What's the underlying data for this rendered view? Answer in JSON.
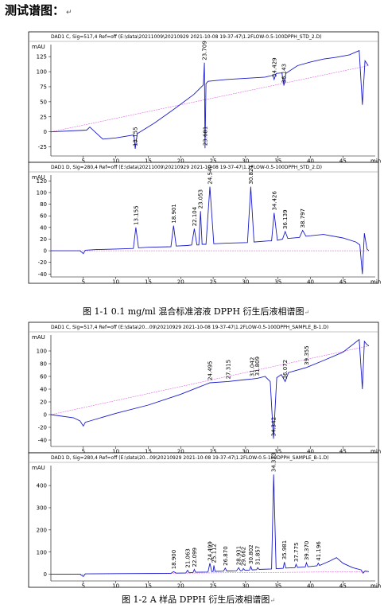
{
  "heading": "测试谱图：",
  "paragraph_mark": "↵",
  "watermark": "",
  "captions": {
    "fig1": "图 1-1 0.1 mg/ml  混合标准溶液 DPPH 衍生后液相谱图",
    "fig2": "图 1-2 A 样品 DPPH 衍生后液相谱图"
  },
  "colors": {
    "signal": "#1a1acd",
    "baseline": "#e040e0",
    "frame": "#000000"
  },
  "chart_data": [
    {
      "type": "line",
      "header": "DAD1 C, Sig=517,4 Ref=off (E:\\data\\20211009\\20210929 2021-10-08 19-37-47\\1.2FLOW-0.5-100DPPH_STD_2.D)",
      "ylabel": "mAU",
      "xlabel": "",
      "xunit": "min",
      "xlim": [
        0,
        49
      ],
      "ylim": [
        -40,
        145
      ],
      "xticks": [
        5,
        10,
        15,
        20,
        25,
        30,
        35,
        40,
        45
      ],
      "yticks": [
        -25,
        0,
        25,
        50,
        75,
        100,
        125
      ],
      "x": [
        0,
        5.5,
        6.0,
        8,
        10,
        12.8,
        13.0,
        13.3,
        16,
        19,
        22,
        23.5,
        23.65,
        23.75,
        23.9,
        24.2,
        27,
        30,
        33,
        34.2,
        34.4,
        34.7,
        35.6,
        35.9,
        36.2,
        38,
        40,
        42,
        44,
        46,
        47.5,
        48.0,
        48.4,
        48.9
      ],
      "y": [
        0,
        3,
        8,
        -12,
        -10,
        -5,
        -28,
        -3,
        15,
        38,
        62,
        78,
        115,
        -27,
        80,
        84,
        87,
        89,
        91,
        94,
        87,
        97,
        98,
        77,
        97,
        110,
        116,
        121,
        124,
        128,
        135,
        45,
        118,
        110
      ],
      "peaks": [
        {
          "rt": "13.155",
          "x": 13.0,
          "y": -28
        },
        {
          "rt": "23.681",
          "x": 23.75,
          "y": -27
        },
        {
          "rt": "23.709",
          "x": 23.65,
          "y": 115
        },
        {
          "rt": "34.429",
          "x": 34.4,
          "y": 87
        },
        {
          "rt": "36.143",
          "x": 35.9,
          "y": 77
        }
      ]
    },
    {
      "type": "line",
      "header": "DAD1 D, Sig=280,4 Ref=off (E:\\data\\20211009\\20210929 2021-10-08 19-37-47\\1.2FLOW-0.5-100DPPH_STD_2.D)",
      "ylabel": "mAU",
      "xlabel": "",
      "xunit": "min",
      "xlim": [
        0,
        49
      ],
      "ylim": [
        -45,
        130
      ],
      "xticks": [
        5,
        10,
        15,
        20,
        25,
        30,
        35,
        40,
        45
      ],
      "yticks": [
        -40,
        -20,
        0,
        20,
        40,
        60,
        80,
        100,
        120
      ],
      "x": [
        0,
        4.5,
        5.0,
        5.3,
        7,
        10,
        12.7,
        13.1,
        13.5,
        15,
        18.5,
        18.9,
        19.3,
        21,
        21.7,
        22.1,
        22.5,
        22.8,
        23.05,
        23.3,
        23.9,
        24.5,
        25.1,
        27,
        30.3,
        30.8,
        31.3,
        33.5,
        34.0,
        34.4,
        34.9,
        35.7,
        36.1,
        36.5,
        38.3,
        38.8,
        39.3,
        42,
        45,
        47,
        47.6,
        48.0,
        48.3,
        48.7,
        49
      ],
      "y": [
        0,
        0,
        -5,
        1,
        2,
        3,
        4,
        40,
        5,
        6,
        7,
        43,
        8,
        9,
        10,
        38,
        10,
        10,
        68,
        11,
        11,
        110,
        12,
        13,
        14,
        110,
        15,
        17,
        17,
        65,
        18,
        20,
        33,
        21,
        23,
        35,
        25,
        28,
        22,
        15,
        10,
        -40,
        30,
        3,
        0
      ],
      "peaks": [
        {
          "rt": "13.155",
          "x": 13.1,
          "y": 40
        },
        {
          "rt": "18.901",
          "x": 18.9,
          "y": 43
        },
        {
          "rt": "22.104",
          "x": 22.1,
          "y": 38
        },
        {
          "rt": "23.053",
          "x": 23.05,
          "y": 68
        },
        {
          "rt": "24.540",
          "x": 24.5,
          "y": 110
        },
        {
          "rt": "30.821",
          "x": 30.8,
          "y": 110
        },
        {
          "rt": "34.426",
          "x": 34.4,
          "y": 65
        },
        {
          "rt": "36.139",
          "x": 36.1,
          "y": 33
        },
        {
          "rt": "38.797",
          "x": 38.8,
          "y": 35
        }
      ]
    },
    {
      "type": "line",
      "header": "DAD1 C, Sig=517,4 Ref=off (E:\\data\\20...09\\20210929 2021-10-08 19-37-47\\1.2FLOW-0.5-100DPPH_SAMPLE_B-1.D)",
      "ylabel": "mAU",
      "xlabel": "",
      "xunit": "min",
      "xlim": [
        0,
        49
      ],
      "ylim": [
        -50,
        125
      ],
      "xticks": [
        5,
        10,
        15,
        20,
        25,
        30,
        35,
        40,
        45
      ],
      "yticks": [
        -40,
        -20,
        0,
        20,
        40,
        60,
        80,
        100
      ],
      "x": [
        0,
        3.5,
        4.5,
        5.0,
        5.3,
        6,
        10,
        15,
        20,
        24.5,
        27.3,
        30,
        31.0,
        31.8,
        33,
        33.8,
        34.3,
        34.8,
        35.5,
        36.1,
        36.6,
        39.355,
        42,
        45,
        47.5,
        48.0,
        48.3,
        48.7,
        49
      ],
      "y": [
        0,
        -5,
        -10,
        -18,
        -12,
        -10,
        2,
        15,
        32,
        50,
        52,
        55,
        56,
        57,
        60,
        52,
        -38,
        58,
        63,
        52,
        66,
        74,
        85,
        98,
        118,
        40,
        115,
        110,
        108
      ],
      "peaks": [
        {
          "rt": "24.495",
          "x": 24.5,
          "y": 50
        },
        {
          "rt": "27.315",
          "x": 27.3,
          "y": 52
        },
        {
          "rt": "31.042",
          "x": 31.0,
          "y": 56
        },
        {
          "rt": "31.809",
          "x": 31.8,
          "y": 57
        },
        {
          "rt": "34.342",
          "x": 34.3,
          "y": -38
        },
        {
          "rt": "36.072",
          "x": 36.1,
          "y": 52
        },
        {
          "rt": "39.355",
          "x": 39.355,
          "y": 74
        }
      ]
    },
    {
      "type": "line",
      "header": "DAD1 D, Sig=280,4 Ref=off (E:\\data\\20...09\\20210929 2021-10-08 19-37-47\\1.2FLOW-0.5-100DPPH_SAMPLE_B-1.D)",
      "ylabel": "mAU",
      "xlabel": "",
      "xunit": "min",
      "xlim": [
        0,
        49
      ],
      "ylim": [
        -30,
        490
      ],
      "xticks": [
        5,
        10,
        15,
        20,
        25,
        30,
        35,
        40,
        45
      ],
      "yticks": [
        0,
        100,
        200,
        300,
        400
      ],
      "x": [
        0,
        4.5,
        5.0,
        5.3,
        10,
        18.5,
        18.9,
        19.3,
        20.8,
        21.06,
        21.3,
        21.9,
        22.1,
        22.3,
        24.2,
        24.5,
        24.8,
        25.0,
        25.11,
        25.3,
        26.6,
        26.87,
        27.1,
        28.6,
        28.93,
        29.2,
        29.5,
        29.66,
        29.9,
        30.6,
        30.8,
        31.0,
        31.7,
        31.86,
        32.1,
        34.0,
        34.32,
        34.7,
        35.8,
        35.98,
        36.2,
        37.6,
        37.78,
        38.0,
        39.2,
        39.37,
        39.6,
        41.0,
        41.2,
        41.4,
        43,
        44,
        45,
        46.5,
        47.8,
        48.1,
        48.4,
        49
      ],
      "y": [
        0,
        0,
        -10,
        2,
        3,
        4,
        12,
        5,
        6,
        18,
        7,
        8,
        22,
        9,
        10,
        50,
        12,
        13,
        40,
        13,
        14,
        28,
        15,
        16,
        30,
        16,
        17,
        26,
        18,
        19,
        35,
        20,
        21,
        30,
        22,
        24,
        450,
        25,
        27,
        55,
        28,
        30,
        45,
        31,
        33,
        52,
        34,
        38,
        50,
        40,
        60,
        75,
        50,
        30,
        20,
        5,
        15,
        12
      ],
      "peaks": [
        {
          "rt": "18.900",
          "x": 18.9,
          "y": 12
        },
        {
          "rt": "21.063",
          "x": 21.06,
          "y": 18
        },
        {
          "rt": "22.099",
          "x": 22.1,
          "y": 22
        },
        {
          "rt": "24.499",
          "x": 24.5,
          "y": 50
        },
        {
          "rt": "25.112",
          "x": 25.11,
          "y": 40
        },
        {
          "rt": "26.870",
          "x": 26.87,
          "y": 28
        },
        {
          "rt": "28.931",
          "x": 28.93,
          "y": 30
        },
        {
          "rt": "29.662",
          "x": 29.66,
          "y": 26
        },
        {
          "rt": "30.802",
          "x": 30.8,
          "y": 35
        },
        {
          "rt": "31.857",
          "x": 31.86,
          "y": 30
        },
        {
          "rt": "34.323",
          "x": 34.32,
          "y": 450
        },
        {
          "rt": "35.981",
          "x": 35.98,
          "y": 55
        },
        {
          "rt": "37.775",
          "x": 37.78,
          "y": 45
        },
        {
          "rt": "39.370",
          "x": 39.37,
          "y": 52
        },
        {
          "rt": "41.196",
          "x": 41.2,
          "y": 50
        }
      ]
    }
  ]
}
